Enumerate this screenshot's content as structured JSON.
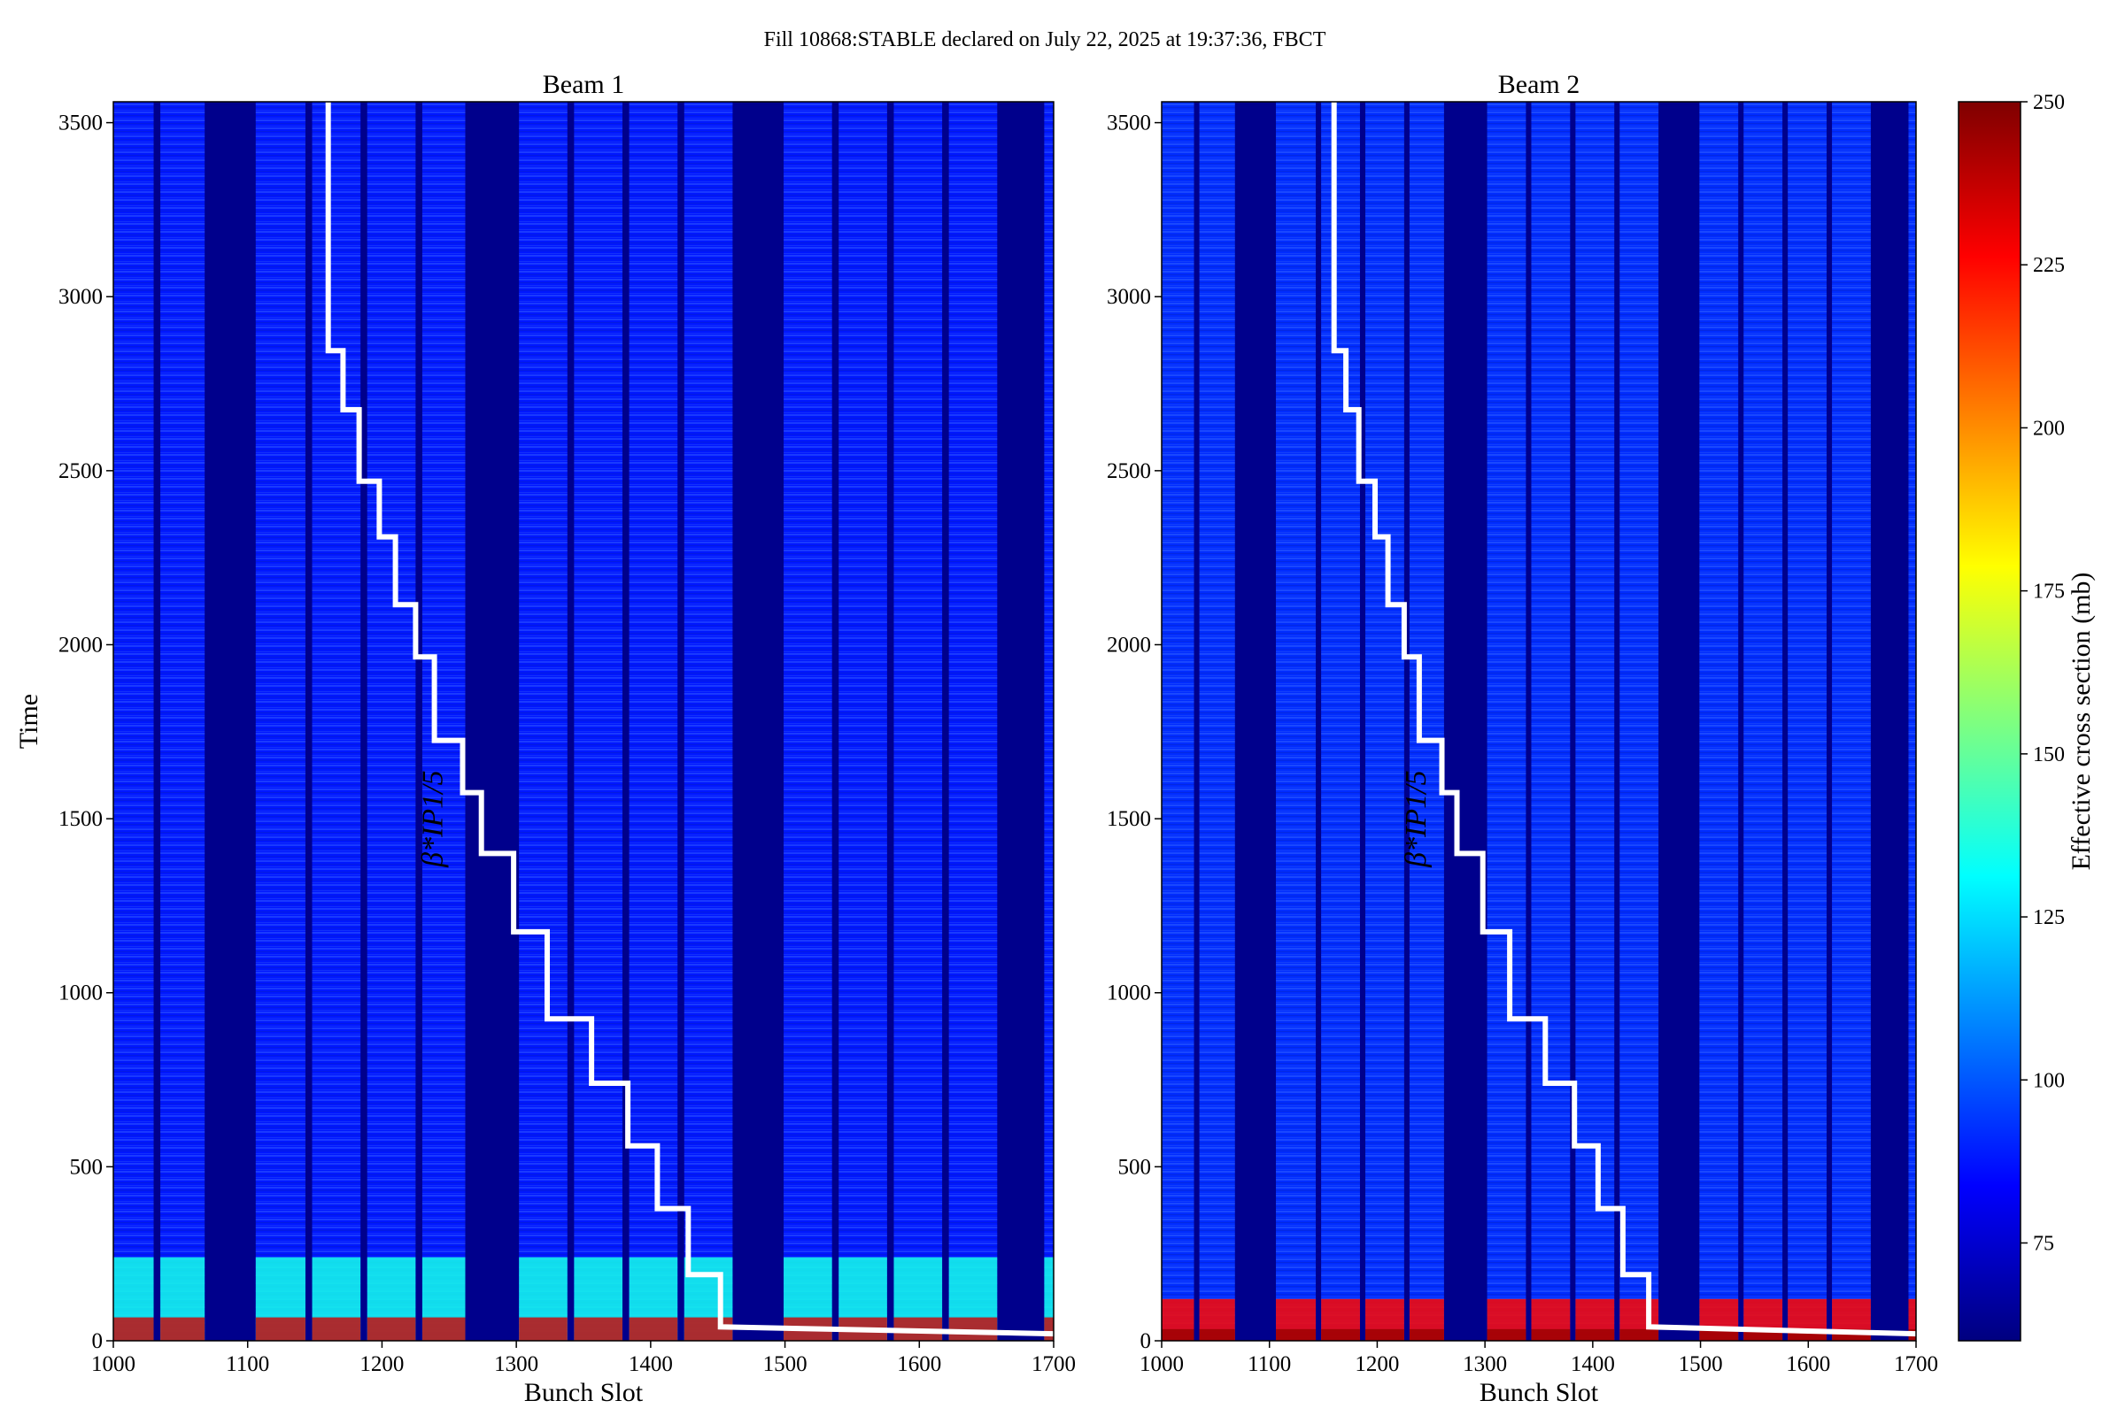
{
  "suptitle": "Fill 10868:STABLE declared on July 22, 2025 at 19:37:36, FBCT",
  "colorbar": {
    "label": "Effective cross section (mb)",
    "range": [
      60,
      250
    ],
    "ticks": [
      75,
      100,
      125,
      150,
      175,
      200,
      225,
      250
    ],
    "colormap": "jet",
    "stops": [
      "#00007f",
      "#0000ff",
      "#007fff",
      "#00ffff",
      "#7fff7f",
      "#ffff00",
      "#ff7f00",
      "#ff0000",
      "#7f0000"
    ]
  },
  "colors": {
    "gap": "#00008c",
    "background_field": "#1a3fdc",
    "staircase": "#ffffff"
  },
  "chart_data": [
    {
      "type": "heatmap",
      "title": "Beam 1",
      "xlabel": "Bunch Slot",
      "ylabel": "Time",
      "xlim": [
        1000,
        1700
      ],
      "ylim": [
        0,
        3560
      ],
      "xticks": [
        1000,
        1100,
        1200,
        1300,
        1400,
        1500,
        1600,
        1700
      ],
      "yticks": [
        0,
        500,
        1000,
        1500,
        2000,
        2500,
        3000,
        3500
      ],
      "filled_trains": [
        [
          1000,
          1030
        ],
        [
          1035,
          1068
        ],
        [
          1106,
          1143
        ],
        [
          1148,
          1184
        ],
        [
          1189,
          1225
        ],
        [
          1230,
          1262
        ],
        [
          1302,
          1338
        ],
        [
          1343,
          1379
        ],
        [
          1384,
          1420
        ],
        [
          1425,
          1461
        ],
        [
          1499,
          1535
        ],
        [
          1540,
          1576
        ],
        [
          1581,
          1617
        ],
        [
          1622,
          1658
        ],
        [
          1693,
          1700
        ]
      ],
      "cross_section_mb": {
        "bulk": 88,
        "early_high_until_time": 240,
        "early_level": 135,
        "start_peak": 235
      },
      "annotation": {
        "text": "β*IP1/5",
        "x": 1245,
        "y": 1500
      },
      "staircase": {
        "x": [
          1160,
          1160,
          1171,
          1171,
          1183,
          1183,
          1198,
          1198,
          1210,
          1210,
          1225,
          1225,
          1239,
          1239,
          1260,
          1260,
          1274,
          1274,
          1298,
          1298,
          1323,
          1323,
          1356,
          1356,
          1383,
          1383,
          1405,
          1405,
          1428,
          1428,
          1452,
          1452,
          1700
        ],
        "y": [
          3560,
          2845,
          2845,
          2675,
          2675,
          2470,
          2470,
          2310,
          2310,
          2115,
          2115,
          1965,
          1965,
          1725,
          1725,
          1575,
          1575,
          1400,
          1400,
          1175,
          1175,
          925,
          925,
          740,
          740,
          560,
          560,
          380,
          380,
          190,
          190,
          40,
          20
        ]
      }
    },
    {
      "type": "heatmap",
      "title": "Beam 2",
      "xlabel": "Bunch Slot",
      "xlim": [
        1000,
        1700
      ],
      "ylim": [
        0,
        3560
      ],
      "xticks": [
        1000,
        1100,
        1200,
        1300,
        1400,
        1500,
        1600,
        1700
      ],
      "yticks": [
        0,
        500,
        1000,
        1500,
        2000,
        2500,
        3000,
        3500
      ],
      "filled_trains": [
        [
          1000,
          1030
        ],
        [
          1035,
          1068
        ],
        [
          1106,
          1143
        ],
        [
          1148,
          1184
        ],
        [
          1189,
          1225
        ],
        [
          1230,
          1262
        ],
        [
          1302,
          1338
        ],
        [
          1343,
          1379
        ],
        [
          1384,
          1420
        ],
        [
          1425,
          1461
        ],
        [
          1499,
          1535
        ],
        [
          1540,
          1576
        ],
        [
          1581,
          1617
        ],
        [
          1622,
          1658
        ],
        [
          1693,
          1700
        ]
      ],
      "cross_section_mb": {
        "bulk": 92,
        "early_high_until_time": 120,
        "early_level": 225,
        "start_peak": 245
      },
      "annotation": {
        "text": "β*IP1/5",
        "x": 1245,
        "y": 1500
      },
      "staircase": {
        "x": [
          1160,
          1160,
          1171,
          1171,
          1183,
          1183,
          1198,
          1198,
          1210,
          1210,
          1225,
          1225,
          1239,
          1239,
          1260,
          1260,
          1274,
          1274,
          1298,
          1298,
          1323,
          1323,
          1356,
          1356,
          1383,
          1383,
          1405,
          1405,
          1428,
          1428,
          1452,
          1452,
          1700
        ],
        "y": [
          3560,
          2845,
          2845,
          2675,
          2675,
          2470,
          2470,
          2310,
          2310,
          2115,
          2115,
          1965,
          1965,
          1725,
          1725,
          1575,
          1575,
          1400,
          1400,
          1175,
          1175,
          925,
          925,
          740,
          740,
          560,
          560,
          380,
          380,
          190,
          190,
          40,
          20
        ]
      }
    }
  ]
}
